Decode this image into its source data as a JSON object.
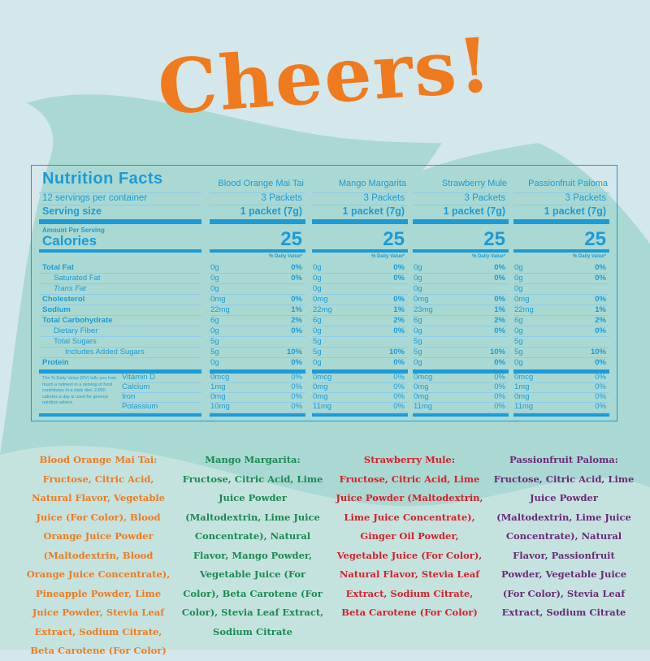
{
  "title": "Cheers!",
  "nutrition": {
    "heading": "Nutrition Facts",
    "servings_per_container": "12 servings per container",
    "serving_size_label": "Serving size",
    "amount_per_serving": "Amount Per Serving",
    "calories_label": "Calories",
    "daily_value_header": "% Daily Value*",
    "nutrients": [
      "Total Fat",
      "Saturated Fat",
      "Trans Fat",
      "Cholesterol",
      "Sodium",
      "Total Carbohydrate",
      "Dietary Fiber",
      "Total Sugars",
      "Includes Added Sugars",
      "Protein",
      "Vitamin D",
      "Calcium",
      "Iron",
      "Potassium"
    ],
    "footnote": "The % Daily Value (DV) tells you how much a nutrient in a serving of food contributes to a daily diet. 2,000 calories a day is used for general nutrition advice.",
    "products": [
      {
        "name": "Blood Orange Mai Tai",
        "servings": "3 Packets",
        "serving_size": "1 packet (7g)",
        "calories": 25,
        "rows": [
          [
            "0g",
            "0%"
          ],
          [
            "0g",
            "0%"
          ],
          [
            "0g"
          ],
          [
            "0mg",
            "0%"
          ],
          [
            "22mg",
            "1%"
          ],
          [
            "6g",
            "2%"
          ],
          [
            "0g",
            "0%"
          ],
          [
            "5g"
          ],
          [
            "5g",
            "10%"
          ],
          [
            "0g",
            "0%"
          ],
          [
            "0mcg",
            "0%"
          ],
          [
            "1mg",
            "0%"
          ],
          [
            "0mg",
            "0%"
          ],
          [
            "10mg",
            "0%"
          ]
        ]
      },
      {
        "name": "Mango Margarita",
        "servings": "3 Packets",
        "serving_size": "1 packet (7g)",
        "calories": 25,
        "rows": [
          [
            "0g",
            "0%"
          ],
          [
            "0g",
            "0%"
          ],
          [
            "0g"
          ],
          [
            "0mg",
            "0%"
          ],
          [
            "22mg",
            "1%"
          ],
          [
            "6g",
            "2%"
          ],
          [
            "0g",
            "0%"
          ],
          [
            "5g"
          ],
          [
            "5g",
            "10%"
          ],
          [
            "0g",
            "0%"
          ],
          [
            "0mcg",
            "0%"
          ],
          [
            "0mg",
            "0%"
          ],
          [
            "0mg",
            "0%"
          ],
          [
            "11mg",
            "0%"
          ]
        ]
      },
      {
        "name": "Strawberry Mule",
        "servings": "3 Packets",
        "serving_size": "1 packet (7g)",
        "calories": 25,
        "rows": [
          [
            "0g",
            "0%"
          ],
          [
            "0g",
            "0%"
          ],
          [
            "0g"
          ],
          [
            "0mg",
            "0%"
          ],
          [
            "23mg",
            "1%"
          ],
          [
            "6g",
            "2%"
          ],
          [
            "0g",
            "0%"
          ],
          [
            "5g"
          ],
          [
            "5g",
            "10%"
          ],
          [
            "0g",
            "0%"
          ],
          [
            "0mcg",
            "0%"
          ],
          [
            "0mg",
            "0%"
          ],
          [
            "0mg",
            "0%"
          ],
          [
            "11mg",
            "0%"
          ]
        ]
      },
      {
        "name": "Passionfruit Paloma",
        "servings": "3 Packets",
        "serving_size": "1 packet (7g)",
        "calories": 25,
        "rows": [
          [
            "0g",
            "0%"
          ],
          [
            "0g",
            "0%"
          ],
          [
            "0g"
          ],
          [
            "0mg",
            "0%"
          ],
          [
            "22mg",
            "1%"
          ],
          [
            "6g",
            "2%"
          ],
          [
            "0g",
            "0%"
          ],
          [
            "5g"
          ],
          [
            "5g",
            "10%"
          ],
          [
            "0g",
            "0%"
          ],
          [
            "0mcg",
            "0%"
          ],
          [
            "1mg",
            "0%"
          ],
          [
            "0mg",
            "0%"
          ],
          [
            "11mg",
            "0%"
          ]
        ]
      }
    ]
  },
  "ingredients": [
    {
      "name": "Blood Orange Mai Tai:",
      "color": "#f07a1e",
      "text": "Fructose, Citric Acid, Natural Flavor, Vegetable Juice (For Color), Blood Orange Juice Powder (Maltodextrin, Blood Orange Juice Concentrate), Pineapple Powder, Lime Juice Powder, Stevia Leaf Extract, Sodium Citrate, Beta Carotene (For Color)"
    },
    {
      "name": "Mango Margarita:",
      "color": "#1a8a52",
      "text": "Fructose, Citric Acid, Lime Juice Powder (Maltodextrin, Lime Juice Concentrate), Natural Flavor, Mango Powder, Vegetable Juice (For Color), Beta Carotene (For Color), Stevia Leaf Extract, Sodium Citrate"
    },
    {
      "name": "Strawberry Mule:",
      "color": "#d81f2b",
      "text": "Fructose, Citric Acid, Lime Juice Powder (Maltodextrin, Lime Juice Concentrate), Ginger Oil Powder, Vegetable Juice (For Color), Natural Flavor, Stevia Leaf Extract, Sodium Citrate, Beta Carotene (For Color)"
    },
    {
      "name": "Passionfruit Paloma:",
      "color": "#6b2a78",
      "text": "Fructose, Citric Acid, Lime Juice Powder (Maltodextrin, Lime Juice Concentrate), Natural Flavor, Passionfruit Powder, Vegetable Juice (For Color), Stevia Leaf Extract, Sodium Citrate"
    }
  ]
}
